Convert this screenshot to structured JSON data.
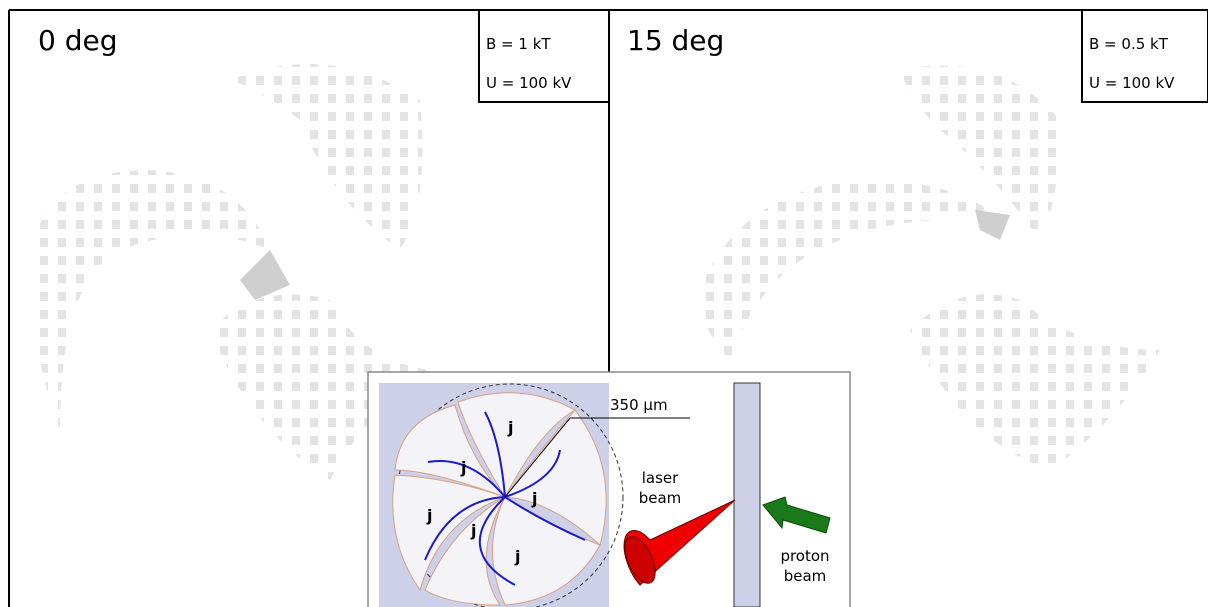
{
  "panels": [
    {
      "label": "0 deg",
      "params": [
        "B = 1 kT",
        "U = 100 kV"
      ]
    },
    {
      "label": "15 deg",
      "params": [
        "B = 0.5 kT",
        "U = 100 kV"
      ]
    }
  ],
  "inset": {
    "scale_label": "350 µm",
    "current_labels": [
      "j",
      "j",
      "j",
      "j",
      "j",
      "j"
    ],
    "laser_label": [
      "laser",
      "beam"
    ],
    "proton_label": [
      "proton",
      "beam"
    ]
  }
}
